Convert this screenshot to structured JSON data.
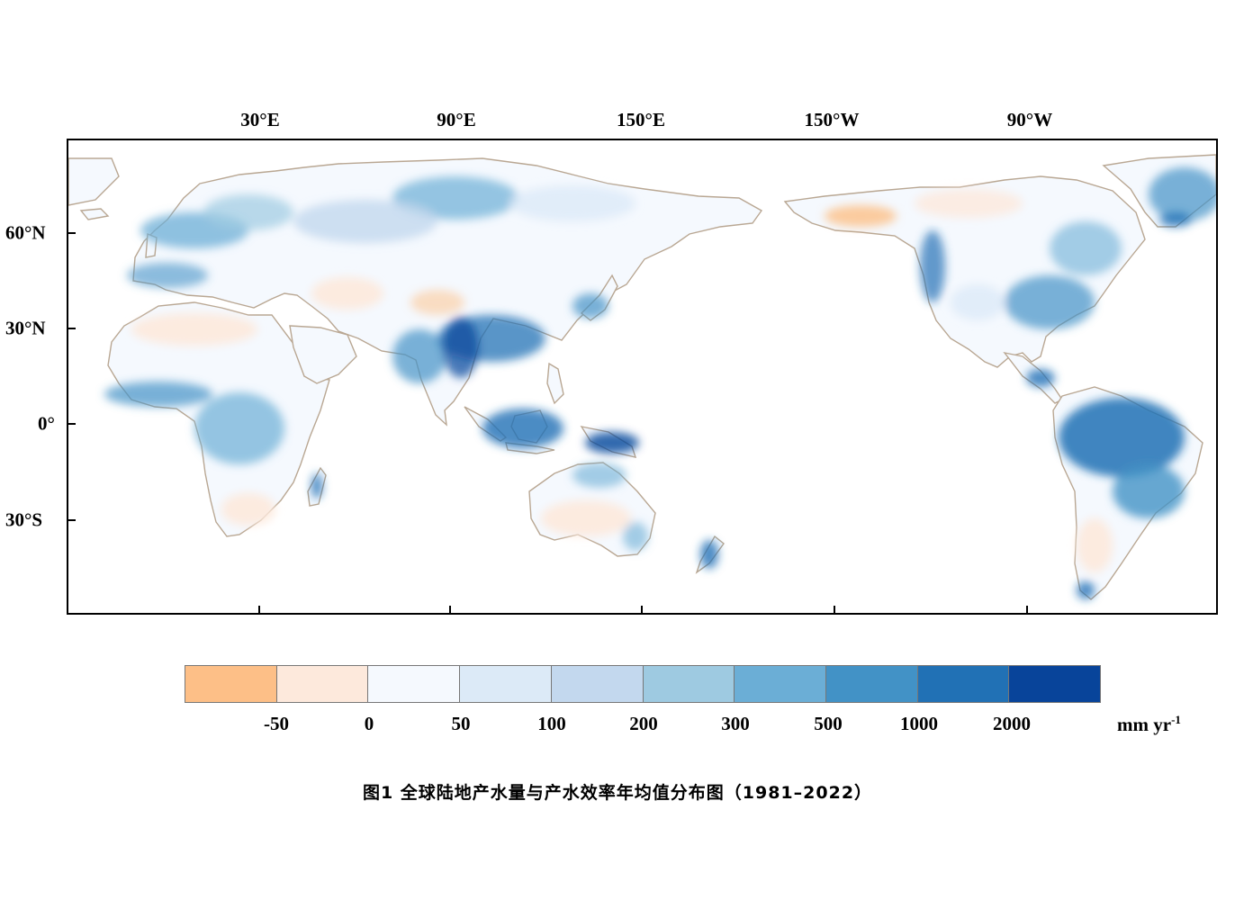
{
  "map": {
    "lon_labels": [
      "30°E",
      "90°E",
      "150°E",
      "150°W",
      "90°W"
    ],
    "lat_labels": [
      "60°N",
      "30°N",
      "0°",
      "30°S"
    ]
  },
  "legend": {
    "colors": [
      "#fdbf87",
      "#fde9dc",
      "#f5f9fe",
      "#dceaf7",
      "#c3d8ee",
      "#9ecae1",
      "#6baed6",
      "#4292c6",
      "#2171b5",
      "#08449a"
    ],
    "labels": [
      "-50",
      "0",
      "50",
      "100",
      "200",
      "300",
      "500",
      "1000",
      "2000"
    ],
    "unit": "mm yr",
    "unit_exp": "-1"
  },
  "caption": "图1  全球陆地产水量与产水效率年均值分布图（1981–2022）"
}
